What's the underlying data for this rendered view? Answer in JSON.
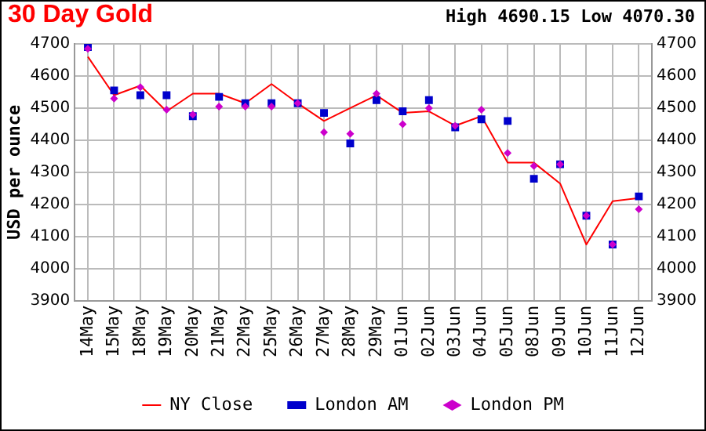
{
  "chart_data": {
    "type": "line",
    "title": "30 Day Gold",
    "subtitle": "High 4690.15 Low 4070.30",
    "ylabel": "USD per ounce",
    "categories": [
      "14May",
      "15May",
      "18May",
      "19May",
      "20May",
      "21May",
      "22May",
      "25May",
      "26May",
      "27May",
      "28May",
      "29May",
      "01Jun",
      "02Jun",
      "03Jun",
      "04Jun",
      "05Jun",
      "08Jun",
      "09Jun",
      "10Jun",
      "11Jun",
      "12Jun"
    ],
    "series": [
      {
        "name": "NY Close",
        "type": "line",
        "color": "#ff0000",
        "marker": "none",
        "values": [
          4660,
          4540,
          4570,
          4490,
          4545,
          4545,
          4515,
          4575,
          4515,
          4460,
          4500,
          4540,
          4485,
          4490,
          4445,
          4475,
          4330,
          4330,
          4265,
          4075,
          4210,
          4220
        ]
      },
      {
        "name": "London AM",
        "type": "scatter",
        "color": "#0000cc",
        "marker": "square",
        "values": [
          4690,
          4555,
          4540,
          4540,
          4475,
          4535,
          4515,
          4515,
          4515,
          4485,
          4390,
          4525,
          4490,
          4525,
          4440,
          4465,
          4460,
          4280,
          4325,
          4165,
          4075,
          4225
        ]
      },
      {
        "name": "London PM",
        "type": "scatter",
        "color": "#cc00cc",
        "marker": "diamond",
        "values": [
          4685,
          4530,
          4565,
          4495,
          4480,
          4505,
          4505,
          4505,
          4515,
          4425,
          4420,
          4545,
          4450,
          4500,
          4445,
          4495,
          4360,
          4320,
          4325,
          4165,
          4075,
          4185
        ]
      }
    ],
    "ylim": [
      3900,
      4700
    ],
    "yticks": [
      3900,
      4000,
      4100,
      4200,
      4300,
      4400,
      4500,
      4600,
      4700
    ],
    "y2lim": [
      3900,
      4700
    ],
    "y2ticks": [
      3900,
      4000,
      4100,
      4200,
      4300,
      4400,
      4500,
      4600,
      4700
    ],
    "grid": true,
    "legend": "bottom"
  }
}
